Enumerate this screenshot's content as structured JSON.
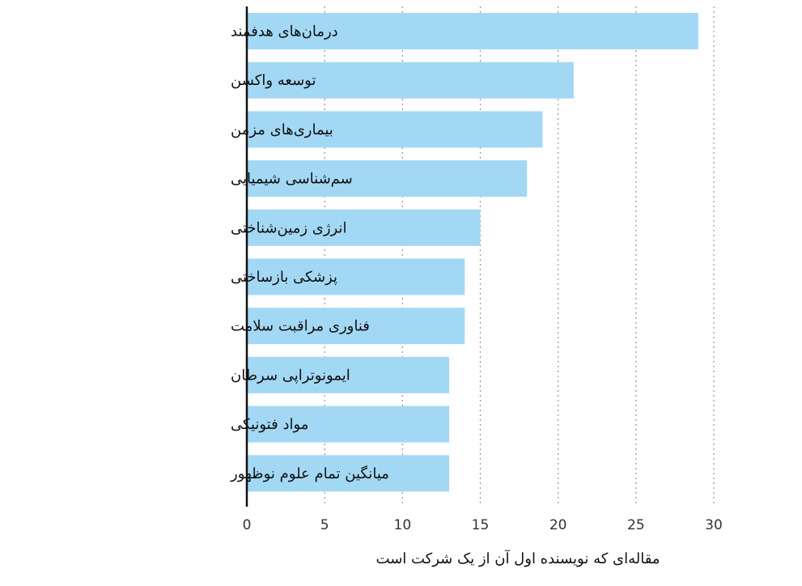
{
  "chart_data": {
    "type": "bar",
    "orientation": "horizontal",
    "categories": [
      "درمان‌های هدفمند",
      "توسعه واکسن",
      "بیماری‌های مزمن",
      "سم‌شناسی شیمیایی",
      "انرژی زمین‌شناختی",
      "پزشکی بازساختی",
      "فناوری مراقبت سلامت",
      "ایمونوتراپی سرطان",
      "مواد فتونیکی",
      "میانگین تمام علوم نوظهور"
    ],
    "values": [
      29,
      21,
      19,
      18,
      15,
      14,
      14,
      13,
      13,
      13
    ],
    "xlabel": "مقاله‌ای که نویسنده اول آن از یک شرکت است",
    "ylabel": "",
    "xlim": [
      0,
      30
    ],
    "xticks": [
      "0",
      "5",
      "10",
      "15",
      "20",
      "25",
      "30"
    ],
    "grid": "vertical dotted",
    "legend": "none",
    "colors": {
      "bar": "#a3d8f5",
      "axis": "#111111",
      "grid": "#9a9a9a",
      "text": "#111111"
    }
  }
}
